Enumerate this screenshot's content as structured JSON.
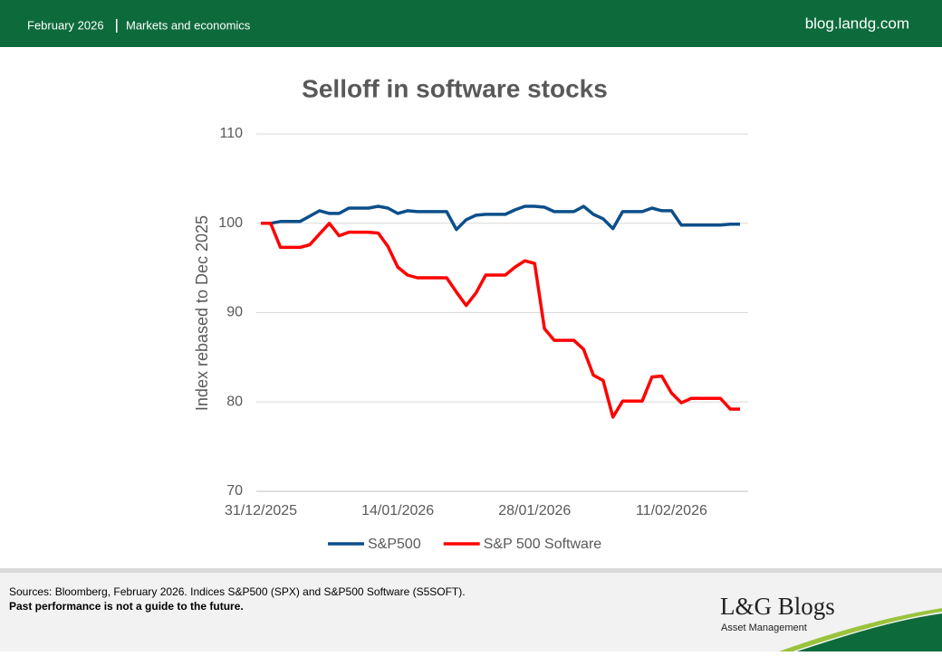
{
  "header": {
    "date": "February 2026",
    "section": "Markets and economics",
    "site": "blog.landg.com"
  },
  "footer": {
    "sources": "Sources: Bloomberg, February 2026. Indices S&P500 (SPX) and S&P500 Software (S5SOFT).",
    "disclaimer": "Past performance is not a guide to the future."
  },
  "logo": {
    "name": "L&G Blogs",
    "subtitle": "Asset Management"
  },
  "chart_data": {
    "type": "line",
    "title": "Selloff in software stocks",
    "y_label": "Index rebased to Dec 2025",
    "x": [
      "31/12/2025",
      "01/01/2026",
      "02/01/2026",
      "03/01/2026",
      "04/01/2026",
      "05/01/2026",
      "06/01/2026",
      "07/01/2026",
      "08/01/2026",
      "09/01/2026",
      "10/01/2026",
      "11/01/2026",
      "12/01/2026",
      "13/01/2026",
      "14/01/2026",
      "15/01/2026",
      "16/01/2026",
      "17/01/2026",
      "18/01/2026",
      "19/01/2026",
      "20/01/2026",
      "21/01/2026",
      "22/01/2026",
      "23/01/2026",
      "24/01/2026",
      "25/01/2026",
      "26/01/2026",
      "27/01/2026",
      "28/01/2026",
      "29/01/2026",
      "30/01/2026",
      "31/01/2026",
      "01/02/2026",
      "02/02/2026",
      "03/02/2026",
      "04/02/2026",
      "05/02/2026",
      "06/02/2026",
      "07/02/2026",
      "08/02/2026",
      "09/02/2026",
      "10/02/2026",
      "11/02/2026",
      "12/02/2026",
      "13/02/2026",
      "14/02/2026",
      "15/02/2026",
      "16/02/2026",
      "17/02/2026",
      "18/02/2026"
    ],
    "xticks": [
      "31/12/2025",
      "14/01/2026",
      "28/01/2026",
      "11/02/2026"
    ],
    "series": [
      {
        "name": "S&P500",
        "color": "#0b4f8a",
        "values": [
          100.0,
          100.0,
          100.2,
          100.2,
          100.2,
          100.8,
          101.4,
          101.1,
          101.1,
          101.7,
          101.7,
          101.7,
          101.9,
          101.7,
          101.1,
          101.4,
          101.3,
          101.3,
          101.3,
          101.3,
          99.3,
          100.4,
          100.9,
          101.0,
          101.0,
          101.0,
          101.5,
          101.9,
          101.9,
          101.8,
          101.3,
          101.3,
          101.3,
          101.9,
          101.0,
          100.5,
          99.4,
          101.3,
          101.3,
          101.3,
          101.7,
          101.4,
          101.4,
          99.8,
          99.8,
          99.8,
          99.8,
          99.8,
          99.9,
          99.9
        ]
      },
      {
        "name": "S&P 500 Software",
        "color": "#ff0000",
        "values": [
          100.0,
          100.0,
          97.3,
          97.3,
          97.3,
          97.6,
          98.8,
          100.0,
          98.6,
          99.0,
          99.0,
          99.0,
          98.9,
          97.4,
          95.1,
          94.2,
          93.9,
          93.9,
          93.9,
          93.9,
          92.3,
          90.8,
          92.2,
          94.2,
          94.2,
          94.2,
          95.1,
          95.8,
          95.5,
          88.2,
          86.9,
          86.9,
          86.9,
          85.9,
          83.0,
          82.4,
          78.3,
          80.1,
          80.1,
          80.1,
          82.8,
          82.9,
          81.0,
          79.9,
          80.4,
          80.4,
          80.4,
          80.4,
          79.2,
          79.2
        ]
      }
    ],
    "ylim": [
      70,
      110
    ],
    "yticks": [
      70,
      80,
      90,
      100,
      110
    ],
    "grid": true,
    "legend": "bottom"
  }
}
